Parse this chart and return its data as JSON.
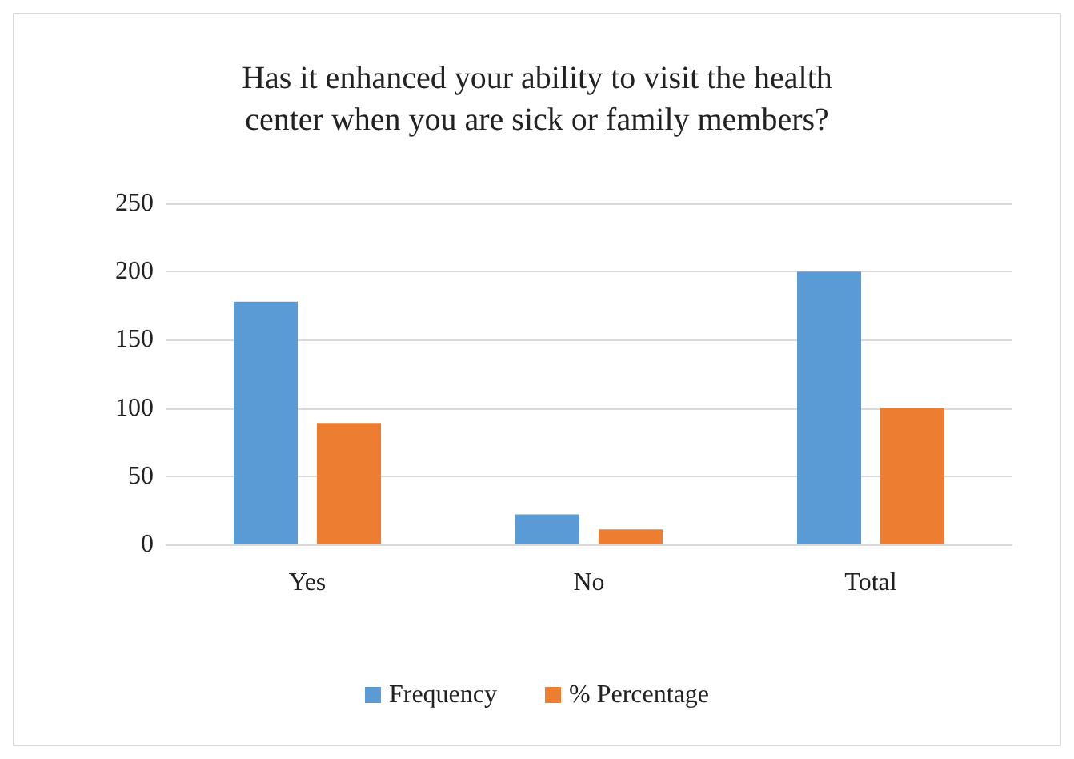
{
  "chart_data": {
    "type": "bar",
    "title": "Has it enhanced your ability to visit the health\ncenter when you are sick or family members?",
    "categories": [
      "Yes",
      "No",
      "Total"
    ],
    "series": [
      {
        "name": "Frequency",
        "color": "#5b9bd5",
        "values": [
          178,
          22,
          200
        ]
      },
      {
        "name": "% Percentage",
        "color": "#ed7d31",
        "values": [
          89,
          11,
          100
        ]
      }
    ],
    "ylim": [
      0,
      250
    ],
    "yticks": [
      0,
      50,
      100,
      150,
      200,
      250
    ],
    "grid": "y",
    "legend": "bottom"
  }
}
